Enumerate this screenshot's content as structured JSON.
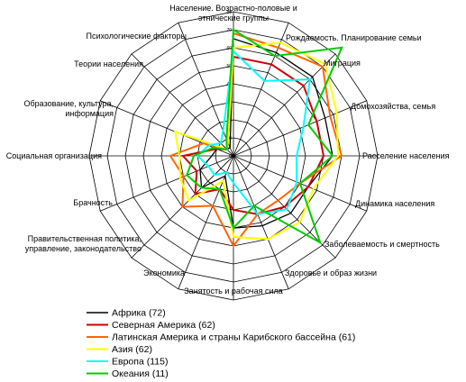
{
  "chart_data": {
    "type": "radar",
    "title": "",
    "axes": [
      "Население. Возрастно-половые и этнические группы",
      "Рождаемость. Планирование семьи",
      "Миграция",
      "Домохозяйства, семья",
      "Расселение населения",
      "Динамика населения",
      "Заболеваемость и смертность",
      "Здоровье и образ жизни",
      "Занятость и рабочая сила",
      "Экономика",
      "Правительственная политика, управление, законодательство",
      "Брачность",
      "Социальная организация",
      "Образование, культура, информация",
      "Теории населения",
      "Психологические факторы"
    ],
    "axis_label_lines": [
      [
        "Население. Возрастно-половые и",
        "этнические группы"
      ],
      [
        "Рождаемость.  Планирование  семьи"
      ],
      [
        "Миграция"
      ],
      [
        "Домохозяйства,  семья"
      ],
      [
        "Расселение  населения"
      ],
      [
        "Динамика  населения"
      ],
      [
        "Заболеваемость  и  смертность"
      ],
      [
        "Здоровье и образ жизни"
      ],
      [
        "Занятость   и   рабочая сила"
      ],
      [
        "Экономика"
      ],
      [
        "Правительственная  политика,",
        "управление,  законодательство"
      ],
      [
        "Брачность"
      ],
      [
        "Социальная  организация"
      ],
      [
        "Образование,  культура,",
        "информация"
      ],
      [
        "Теории    населения"
      ],
      [
        "Психологические    факторы"
      ]
    ],
    "range": [
      0,
      80
    ],
    "ticks": [
      0,
      10,
      20,
      30,
      40,
      50,
      60,
      70,
      80
    ],
    "grid": true,
    "legend_position": "bottom-left",
    "series": [
      {
        "name": "Африка (72)",
        "color": "#000000",
        "values": [
          65,
          62,
          62,
          55,
          55,
          45,
          45,
          42,
          40,
          12,
          25,
          20,
          12,
          10,
          5,
          5
        ]
      },
      {
        "name": "Северная Америка (62)",
        "color": "#cc0000",
        "values": [
          55,
          55,
          55,
          50,
          50,
          45,
          40,
          35,
          30,
          20,
          30,
          22,
          28,
          10,
          5,
          8
        ]
      },
      {
        "name": "Латинская Америка и страны Карибского бассейна (61)",
        "color": "#ff6600",
        "values": [
          68,
          65,
          70,
          58,
          60,
          40,
          35,
          35,
          50,
          30,
          40,
          30,
          35,
          18,
          5,
          10
        ]
      },
      {
        "name": "Азия (62)",
        "color": "#ffff00",
        "values": [
          60,
          68,
          72,
          62,
          58,
          48,
          52,
          50,
          45,
          15,
          35,
          32,
          30,
          35,
          5,
          8
        ]
      },
      {
        "name": "Европа (115)",
        "color": "#00ffff",
        "values": [
          58,
          45,
          60,
          42,
          35,
          38,
          42,
          35,
          15,
          10,
          15,
          15,
          20,
          15,
          10,
          15
        ]
      },
      {
        "name": "Океания (11)",
        "color": "#00cc00",
        "values": [
          70,
          60,
          85,
          45,
          55,
          40,
          68,
          30,
          40,
          20,
          25,
          28,
          22,
          12,
          5,
          10
        ]
      }
    ]
  }
}
